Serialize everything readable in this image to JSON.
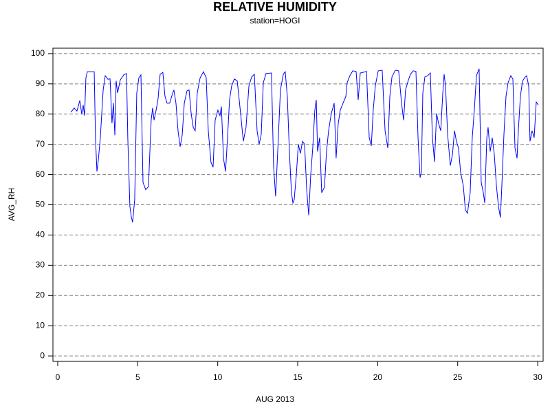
{
  "chart_data": {
    "type": "line",
    "title": "RELATIVE HUMIDITY",
    "subtitle": "station=HOGI",
    "x_label": "AUG 2013",
    "y_label": "AVG_RH",
    "color": "#0000ff",
    "grid": true,
    "xlim": [
      -0.3,
      30.34
    ],
    "ylim": [
      -1.8,
      101.8
    ],
    "xticks": [
      0,
      5,
      10,
      15,
      20,
      25,
      30
    ],
    "yticks": [
      0,
      10,
      20,
      30,
      40,
      50,
      60,
      70,
      80,
      90,
      100
    ],
    "x": [
      0.82,
      1.03,
      1.2,
      1.38,
      1.5,
      1.59,
      1.68,
      1.76,
      1.85,
      2.19,
      2.28,
      2.36,
      2.45,
      2.54,
      2.66,
      2.84,
      2.97,
      3.14,
      3.27,
      3.39,
      3.48,
      3.57,
      3.65,
      3.74,
      3.91,
      4.13,
      4.3,
      4.38,
      4.51,
      4.6,
      4.68,
      4.81,
      4.94,
      5.07,
      5.2,
      5.33,
      5.5,
      5.67,
      5.84,
      5.93,
      6.02,
      6.15,
      6.27,
      6.4,
      6.57,
      6.7,
      6.83,
      7.0,
      7.13,
      7.26,
      7.39,
      7.52,
      7.65,
      7.78,
      7.91,
      8.08,
      8.21,
      8.34,
      8.47,
      8.59,
      8.72,
      8.9,
      9.11,
      9.28,
      9.41,
      9.58,
      9.71,
      9.84,
      10.01,
      10.14,
      10.23,
      10.36,
      10.49,
      10.61,
      10.74,
      10.87,
      11.04,
      11.22,
      11.43,
      11.6,
      11.77,
      11.95,
      12.12,
      12.29,
      12.46,
      12.59,
      12.72,
      12.85,
      13.02,
      13.36,
      13.49,
      13.62,
      13.75,
      13.92,
      14.1,
      14.22,
      14.35,
      14.48,
      14.61,
      14.7,
      14.78,
      14.91,
      15.04,
      15.17,
      15.3,
      15.43,
      15.56,
      15.69,
      15.81,
      15.94,
      16.07,
      16.16,
      16.24,
      16.37,
      16.5,
      16.67,
      16.8,
      16.93,
      17.1,
      17.28,
      17.4,
      17.53,
      17.66,
      17.83,
      18.01,
      18.09,
      18.26,
      18.44,
      18.65,
      18.78,
      18.91,
      19.08,
      19.3,
      19.47,
      19.6,
      19.72,
      19.85,
      20.03,
      20.28,
      20.46,
      20.63,
      20.76,
      20.89,
      21.1,
      21.31,
      21.49,
      21.62,
      21.74,
      21.92,
      22.05,
      22.22,
      22.39,
      22.52,
      22.65,
      22.73,
      22.82,
      22.95,
      23.12,
      23.29,
      23.42,
      23.55,
      23.68,
      23.81,
      23.94,
      24.07,
      24.15,
      24.24,
      24.37,
      24.54,
      24.67,
      24.8,
      24.92,
      25.05,
      25.18,
      25.35,
      25.48,
      25.61,
      25.78,
      25.91,
      26.04,
      26.17,
      26.34,
      26.47,
      26.6,
      26.69,
      26.82,
      26.9,
      27.03,
      27.16,
      27.29,
      27.42,
      27.55,
      27.67,
      27.76,
      27.89,
      28.02,
      28.15,
      28.32,
      28.45,
      28.58,
      28.71,
      28.79,
      28.92,
      29.05,
      29.18,
      29.31,
      29.44,
      29.52,
      29.65,
      29.78,
      29.91,
      30.04
    ],
    "values": [
      80.6,
      82,
      81,
      84.5,
      80,
      83,
      79.5,
      92,
      94,
      94,
      94,
      72,
      61,
      65,
      72,
      88,
      92.7,
      91.5,
      91.7,
      77,
      83.6,
      73,
      91,
      87,
      91.3,
      93,
      93.4,
      72,
      49.4,
      46,
      44.2,
      51.7,
      87,
      92,
      93,
      57.4,
      55,
      56,
      78,
      82,
      78,
      81.3,
      85,
      93.2,
      93.8,
      86,
      83.6,
      83.6,
      86,
      88,
      83.6,
      74.5,
      69.2,
      73,
      83.6,
      87.7,
      88,
      80.2,
      75.6,
      74.5,
      87,
      92,
      94,
      92,
      74.5,
      64,
      62.4,
      78,
      81.3,
      79.5,
      82.5,
      65.4,
      61,
      72,
      84.7,
      89.3,
      91.6,
      91,
      80.2,
      71,
      75.6,
      89.3,
      92.3,
      93.2,
      74.5,
      70,
      73.3,
      90.4,
      93.4,
      93.6,
      63,
      52.8,
      67.6,
      88,
      93.2,
      94,
      85.9,
      67.6,
      54,
      50.6,
      51.7,
      59.7,
      70,
      67,
      71,
      70,
      55,
      46.5,
      59.7,
      68.8,
      81.3,
      84.7,
      67.6,
      72.2,
      54,
      55.8,
      67.6,
      74.5,
      80.2,
      83.6,
      65.4,
      76.8,
      81.3,
      83.6,
      85.9,
      90.4,
      92.7,
      94.3,
      94.1,
      84.7,
      93.6,
      93.8,
      94.1,
      72.2,
      69.5,
      81.3,
      89.3,
      94.3,
      94.5,
      74.5,
      68.8,
      85.9,
      92.3,
      94.5,
      94.3,
      83.6,
      78,
      88,
      91.3,
      93.2,
      94.3,
      94.1,
      72.2,
      59,
      60.8,
      87,
      92.3,
      92.7,
      93.6,
      72.2,
      64.2,
      80.2,
      76.8,
      74.5,
      87,
      93.2,
      89.3,
      73.3,
      63,
      66.5,
      74.5,
      71,
      68.8,
      60.8,
      56.3,
      48.3,
      47.2,
      54,
      72.2,
      81.3,
      92.7,
      95,
      57.4,
      54,
      50.6,
      72.2,
      75.6,
      67.6,
      72.2,
      66.5,
      56.3,
      49.4,
      45.8,
      56.3,
      73.3,
      85.9,
      90.4,
      92.7,
      91.6,
      68.8,
      65.4,
      74.5,
      85.9,
      90.9,
      92,
      92.7,
      89.3,
      71,
      74.5,
      72.2,
      84,
      83
    ]
  }
}
